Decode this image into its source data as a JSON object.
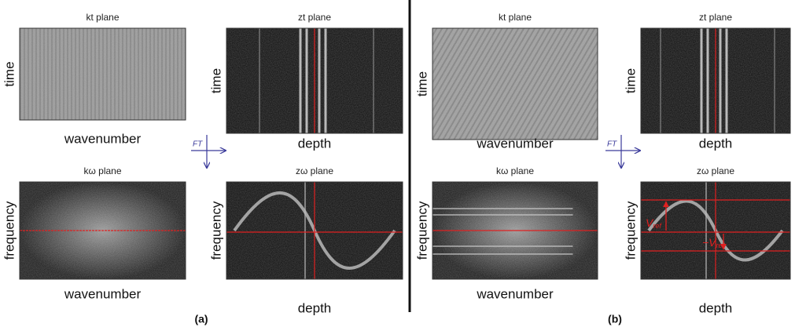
{
  "panels": [
    {
      "label": "(a)",
      "transform": "FT",
      "plots": [
        {
          "title": "kt plane",
          "x_label": "wavenumber",
          "y_label": "time"
        },
        {
          "title": "zt plane",
          "x_label": "depth",
          "y_label": "time"
        },
        {
          "title": "kω plane",
          "x_label": "wavenumber",
          "y_label": "frequency"
        },
        {
          "title": "zω plane",
          "x_label": "depth",
          "y_label": "frequency"
        }
      ]
    },
    {
      "label": "(b)",
      "transform": "FT",
      "plots": [
        {
          "title": "kt plane",
          "x_label": "wavenumber",
          "y_label": "time"
        },
        {
          "title": "zt plane",
          "x_label": "depth",
          "y_label": "time"
        },
        {
          "title": "kω plane",
          "x_label": "wavenumber",
          "y_label": "frequency"
        },
        {
          "title": "zω plane",
          "x_label": "depth",
          "y_label": "frequency"
        }
      ],
      "annotations": [
        {
          "main": "V",
          "sub": "ref"
        },
        {
          "main": "−V",
          "sub": "ref"
        }
      ]
    }
  ]
}
